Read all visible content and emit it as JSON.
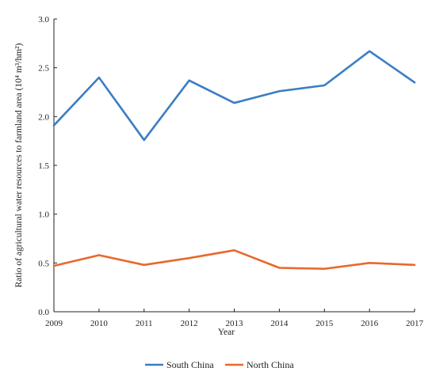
{
  "chart_data": {
    "type": "line",
    "title": "",
    "xlabel": "Year",
    "ylabel": "Ratio of agricultural water resources to farmland area (10⁴ m³/hm²)",
    "x": [
      "2009",
      "2010",
      "2011",
      "2012",
      "2013",
      "2014",
      "2015",
      "2016",
      "2017"
    ],
    "y_ticks": [
      "0.0",
      "0.5",
      "1.0",
      "1.5",
      "2.0",
      "2.5",
      "3.0"
    ],
    "ylim": [
      0,
      3.0
    ],
    "grid": false,
    "legend_position": "bottom",
    "series": [
      {
        "name": "South China",
        "color": "#3b7dc4",
        "values": [
          1.91,
          2.4,
          1.76,
          2.37,
          2.14,
          2.26,
          2.32,
          2.67,
          2.35
        ]
      },
      {
        "name": "North China",
        "color": "#e8692a",
        "values": [
          0.47,
          0.58,
          0.48,
          0.55,
          0.63,
          0.45,
          0.44,
          0.5,
          0.48
        ]
      }
    ]
  }
}
